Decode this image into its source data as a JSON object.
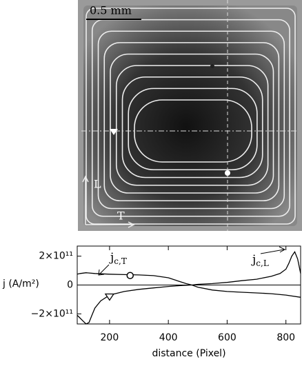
{
  "image": {
    "scale_bar": "0.5 mm",
    "axis_labels": [
      "L",
      "T"
    ]
  },
  "chart_data": {
    "type": "line",
    "xlabel": "distance (Pixel)",
    "ylabel": "j (A/m²)",
    "xlim": [
      90,
      850
    ],
    "xticks": [
      200,
      400,
      600,
      800
    ],
    "ylim": [
      -270000000000.0,
      270000000000.0
    ],
    "yticks": [
      {
        "value": 200000000000,
        "label": "2×10¹¹"
      },
      0,
      {
        "value": -200000000000,
        "label": "−2×10¹¹"
      }
    ],
    "annotations": [
      {
        "text": "j",
        "sub": "c,T"
      },
      {
        "text": "j",
        "sub": "c,L"
      }
    ],
    "series": [
      {
        "color": "#000000",
        "x": [
          90,
          100,
          120,
          150,
          200,
          250,
          300,
          350,
          400,
          430,
          460,
          480,
          500,
          550,
          600,
          650,
          700,
          750,
          800,
          850
        ],
        "values": [
          75000000000.0,
          80000000000.0,
          85000000000.0,
          80000000000.0,
          75000000000.0,
          72000000000.0,
          70000000000.0,
          65000000000.0,
          50000000000.0,
          30000000000.0,
          10000000000.0,
          0,
          -15000000000.0,
          -35000000000.0,
          -45000000000.0,
          -50000000000.0,
          -55000000000.0,
          -60000000000.0,
          -70000000000.0,
          -85000000000.0
        ]
      },
      {
        "color": "#000000",
        "x": [
          90,
          100,
          110,
          120,
          130,
          140,
          150,
          170,
          200,
          250,
          300,
          350,
          400,
          450,
          480,
          500,
          550,
          600,
          650,
          700,
          750,
          780,
          800,
          810,
          820,
          830,
          840,
          850
        ],
        "values": [
          -210000000000.0,
          -230000000000.0,
          -250000000000.0,
          -270000000000.0,
          -260000000000.0,
          -210000000000.0,
          -160000000000.0,
          -110000000000.0,
          -70000000000.0,
          -45000000000.0,
          -30000000000.0,
          -20000000000.0,
          -10000000000.0,
          -3000000000.0,
          0,
          5000000000.0,
          10000000000.0,
          18000000000.0,
          30000000000.0,
          40000000000.0,
          60000000000.0,
          80000000000.0,
          110000000000.0,
          150000000000.0,
          200000000000.0,
          230000000000.0,
          180000000000.0,
          80000000000.0
        ]
      }
    ]
  }
}
